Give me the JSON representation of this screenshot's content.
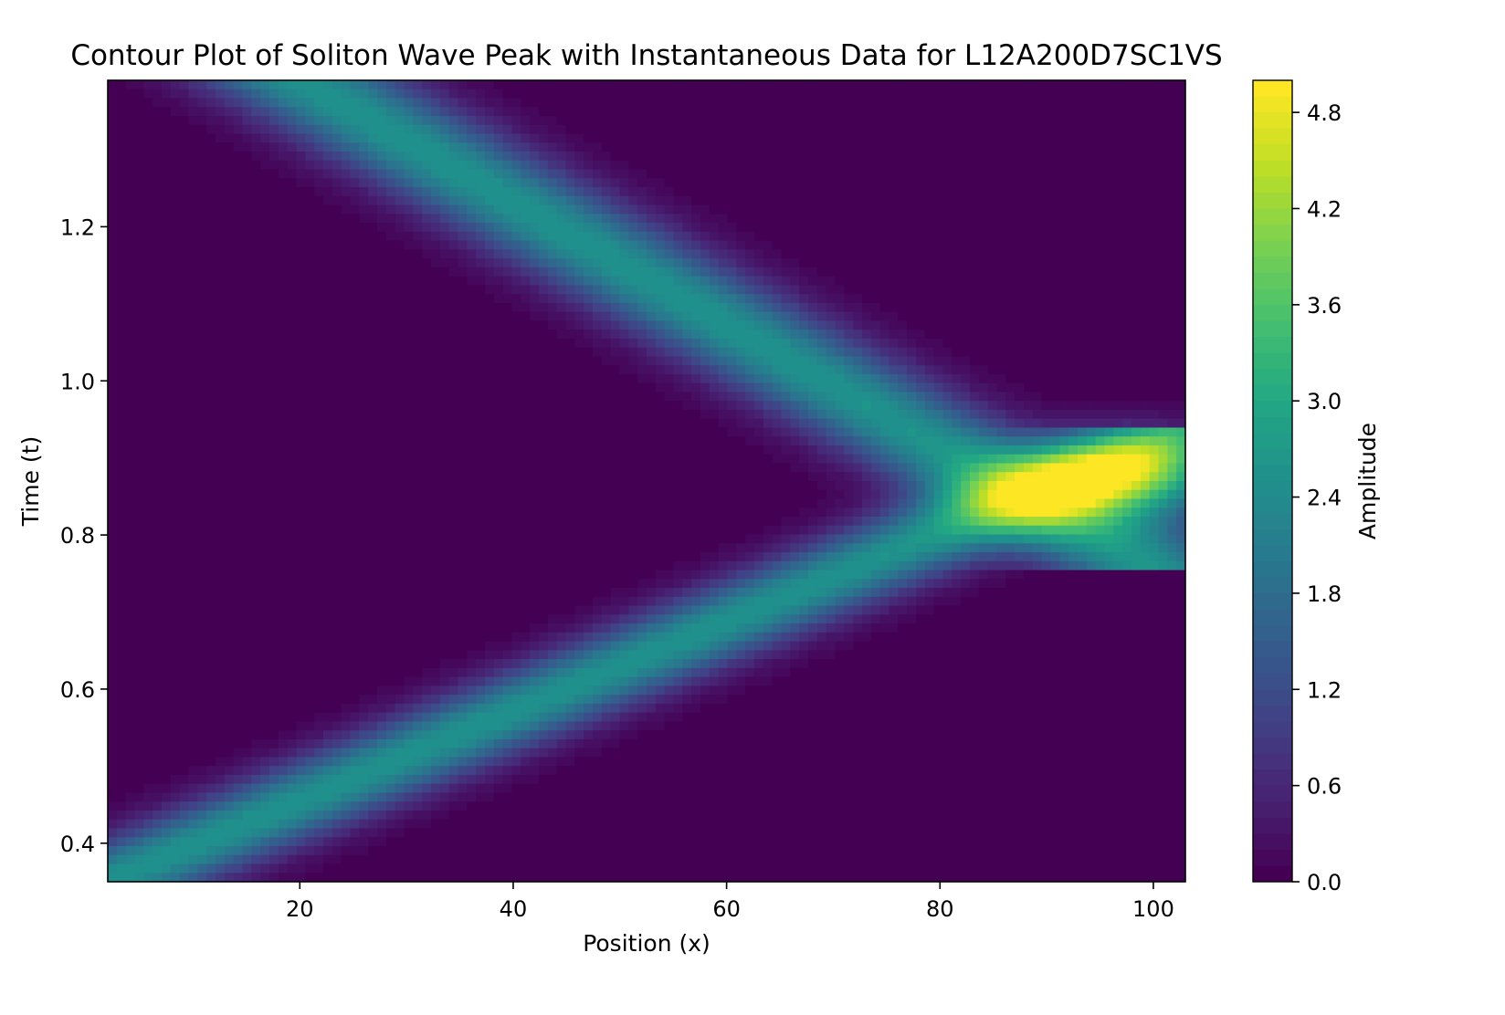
{
  "chart_data": {
    "type": "heatmap",
    "subtype": "filled-contour",
    "title": "Contour Plot of Soliton Wave Peak with Instantaneous Data for L12A200D7SC1VS",
    "xlabel": "Position (x)",
    "ylabel": "Time (t)",
    "xlim": [
      2,
      103
    ],
    "ylim": [
      0.35,
      1.39
    ],
    "x_ticks": [
      20,
      40,
      60,
      80,
      100
    ],
    "x_tick_labels": [
      "20",
      "40",
      "60",
      "80",
      "100"
    ],
    "y_ticks": [
      0.4,
      0.6,
      0.8,
      1.0,
      1.2
    ],
    "y_tick_labels": [
      "0.4",
      "0.6",
      "0.8",
      "1.0",
      "1.2"
    ],
    "colormap": "viridis",
    "colorbar": {
      "label": "Amplitude",
      "range": [
        0.0,
        5.0
      ],
      "ticks": [
        0.0,
        0.6,
        1.2,
        1.8,
        2.4,
        3.0,
        3.6,
        4.2,
        4.8
      ],
      "tick_labels": [
        "0.0",
        "0.6",
        "1.2",
        "1.8",
        "2.4",
        "3.0",
        "3.6",
        "4.2",
        "4.8"
      ],
      "levels": 50
    },
    "grid": false,
    "features": {
      "soliton_1_left_moving": {
        "x_at_t_1_39": 20,
        "x_at_t_0_85": 88,
        "amplitude": 2.6
      },
      "soliton_2_right_moving": {
        "x_at_t_0_35": 2,
        "x_at_t_0_85": 88,
        "amplitude": 2.6
      },
      "collision_peak": {
        "x": 98,
        "t": 0.875,
        "amplitude": 4.9
      }
    }
  }
}
